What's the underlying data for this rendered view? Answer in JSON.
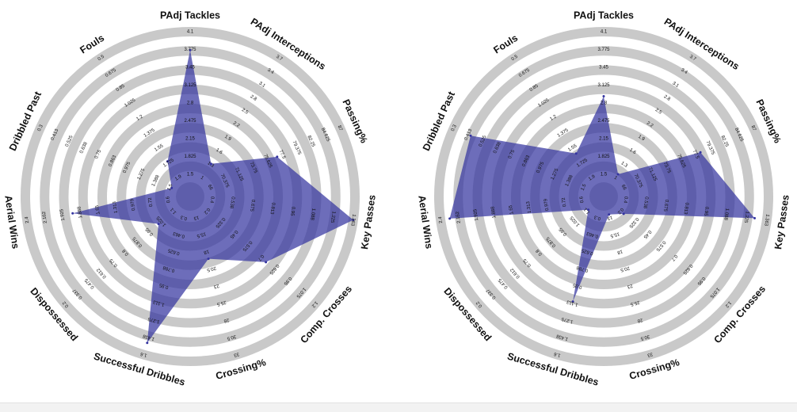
{
  "chart_data": [
    {
      "type": "radar",
      "title": "",
      "categories": [
        "PAdj Tackles",
        "PAdj Interceptions",
        "Passing%",
        "Key Passes",
        "Comp. Crosses",
        "Crossing%",
        "Successful Dribbles",
        "Dispossessed",
        "Aerial Wins",
        "Dribbled Past",
        "Fouls"
      ],
      "ticks": [
        [
          "1.5",
          "1.825",
          "2.15",
          "2.475",
          "2.8",
          "3.125",
          "3.45",
          "3.775",
          "4.1"
        ],
        [
          "1",
          "1.3",
          "1.6",
          "1.9",
          "2.2",
          "2.5",
          "2.8",
          "3.1",
          "3.4",
          "3.7"
        ],
        [
          "66",
          "70.375",
          "71.125",
          "73.75",
          "75.625",
          "77.5",
          "79.375",
          "82.25",
          "84.625",
          "87"
        ],
        [
          "0.4",
          "0.538",
          "0.675",
          "0.813",
          "0.95",
          "1.088",
          "1.225",
          "1.363"
        ],
        [
          "0.2",
          "0.325",
          "0.45",
          "0.575",
          "0.7",
          "0.825",
          "0.95",
          "1.075",
          "1.2"
        ],
        [
          "13",
          "15.5",
          "18",
          "20.5",
          "23",
          "25.5",
          "28",
          "30.5",
          "33"
        ],
        [
          "0.3",
          "0.463",
          "0.625",
          "0.788",
          "0.95",
          "1.113",
          "1.275",
          "1.438",
          "1.6"
        ],
        [
          "1.1",
          "1.025",
          "0.95",
          "0.875",
          "0.8",
          "0.75",
          "0.612",
          "0.475",
          "0.337",
          "0.2"
        ],
        [
          "0.6",
          "0.72",
          "0.979",
          "1.313",
          "1.65",
          "1.888",
          "1.925",
          "2.162",
          "2.4"
        ],
        [
          "1.5",
          "1.388",
          "1.275",
          "0.975",
          "0.863",
          "0.75",
          "0.638",
          "0.525",
          "0.413",
          "0.3"
        ],
        [
          "1.9",
          "1.725",
          "1.55",
          "1.375",
          "1.2",
          "1.025",
          "0.85",
          "0.675",
          "0.5"
        ]
      ],
      "values": [
        0.88,
        0.18,
        0.55,
        1.0,
        0.58,
        0.35,
        0.92,
        0.2,
        0.7,
        0.06,
        0.2
      ],
      "colors": {
        "fill": "#3434a0",
        "ring": "#c9c9c9",
        "inner": "#8c8cc8"
      }
    },
    {
      "type": "radar",
      "title": "",
      "categories": [
        "PAdj Tackles",
        "PAdj Interceptions",
        "Passing%",
        "Key Passes",
        "Comp. Crosses",
        "Crossing%",
        "Successful Dribbles",
        "Dispossessed",
        "Aerial Wins",
        "Dribbled Past",
        "Fouls"
      ],
      "ticks": [
        [
          "1.5",
          "1.825",
          "2.15",
          "2.475",
          "2.8",
          "3.125",
          "3.45",
          "3.775",
          "4.1"
        ],
        [
          "1",
          "1.3",
          "1.6",
          "1.9",
          "2.2",
          "2.5",
          "2.8",
          "3.1",
          "3.4",
          "3.7"
        ],
        [
          "66",
          "70.375",
          "71.125",
          "73.75",
          "75.625",
          "77.5",
          "79.375",
          "82.25",
          "84.625",
          "87"
        ],
        [
          "0.4",
          "0.538",
          "0.675",
          "0.813",
          "0.95",
          "1.088",
          "1.225",
          "1.363"
        ],
        [
          "0.2",
          "0.325",
          "0.45",
          "0.575",
          "0.7",
          "0.825",
          "0.95",
          "1.075",
          "1.2"
        ],
        [
          "13",
          "15.5",
          "18",
          "20.5",
          "23",
          "25.5",
          "28",
          "30.5",
          "33"
        ],
        [
          "0.3",
          "0.463",
          "0.625",
          "0.788",
          "0.95",
          "1.113",
          "1.275",
          "1.438",
          "1.6"
        ],
        [
          "1.1",
          "1.025",
          "0.95",
          "0.875",
          "0.8",
          "0.75",
          "0.612",
          "0.475",
          "0.337",
          "0.2"
        ],
        [
          "0.6",
          "0.72",
          "0.979",
          "1.313",
          "1.65",
          "1.888",
          "1.925",
          "2.162",
          "2.4"
        ],
        [
          "1.5",
          "1.388",
          "1.275",
          "0.975",
          "0.863",
          "0.75",
          "0.638",
          "0.525",
          "0.413",
          "0.3"
        ],
        [
          "1.9",
          "1.725",
          "1.55",
          "1.375",
          "1.2",
          "1.025",
          "0.85",
          "0.675",
          "0.5"
        ]
      ],
      "values": [
        0.58,
        0.1,
        0.62,
        0.92,
        0.1,
        0.05,
        0.64,
        0.06,
        0.94,
        0.88,
        0.26
      ],
      "colors": {
        "fill": "#3434a0",
        "ring": "#c9c9c9",
        "inner": "#8c8cc8"
      }
    }
  ]
}
